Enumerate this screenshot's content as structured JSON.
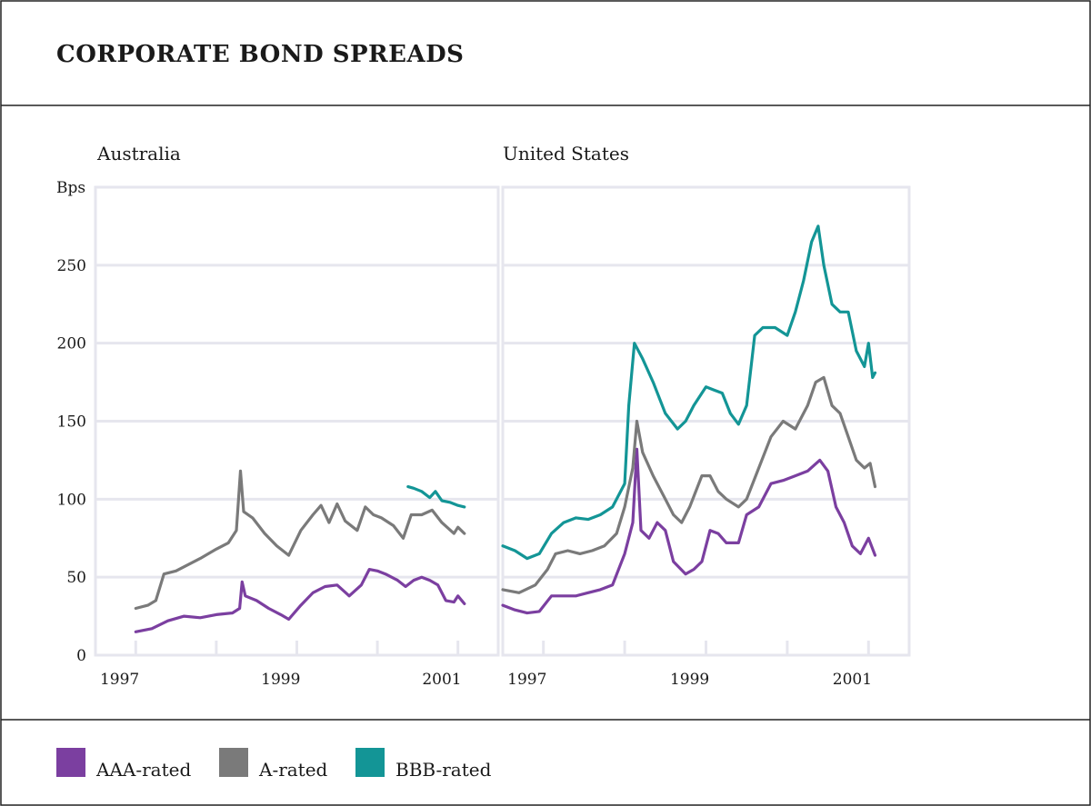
{
  "chart_data": {
    "type": "line",
    "title": "CORPORATE BOND SPREADS",
    "ylabel": "Bps",
    "ylim": [
      0,
      300
    ],
    "yticks": [
      0,
      50,
      100,
      150,
      200,
      250
    ],
    "xticks": [
      "1997",
      "1999",
      "2001"
    ],
    "xlim": [
      1997.0,
      2002.0
    ],
    "legend": [
      {
        "name": "AAA-rated",
        "color": "#7B3FA0"
      },
      {
        "name": "A-rated",
        "color": "#7A7A7A"
      },
      {
        "name": "BBB-rated",
        "color": "#139596"
      }
    ],
    "panels": [
      {
        "title": "Australia",
        "series": [
          {
            "name": "AAA-rated",
            "color": "#7B3FA0",
            "points": [
              [
                1997.5,
                15
              ],
              [
                1997.7,
                17
              ],
              [
                1997.9,
                22
              ],
              [
                1998.1,
                25
              ],
              [
                1998.3,
                24
              ],
              [
                1998.5,
                26
              ],
              [
                1998.7,
                27
              ],
              [
                1998.79,
                30
              ],
              [
                1998.82,
                47
              ],
              [
                1998.86,
                38
              ],
              [
                1999.0,
                35
              ],
              [
                1999.15,
                30
              ],
              [
                1999.3,
                26
              ],
              [
                1999.4,
                23
              ],
              [
                1999.55,
                32
              ],
              [
                1999.7,
                40
              ],
              [
                1999.85,
                44
              ],
              [
                2000.0,
                45
              ],
              [
                2000.15,
                38
              ],
              [
                2000.3,
                45
              ],
              [
                2000.4,
                55
              ],
              [
                2000.5,
                54
              ],
              [
                2000.6,
                52
              ],
              [
                2000.75,
                48
              ],
              [
                2000.85,
                44
              ],
              [
                2000.95,
                48
              ],
              [
                2001.05,
                50
              ],
              [
                2001.15,
                48
              ],
              [
                2001.25,
                45
              ],
              [
                2001.35,
                35
              ],
              [
                2001.45,
                34
              ],
              [
                2001.5,
                38
              ],
              [
                2001.58,
                33
              ]
            ]
          },
          {
            "name": "A-rated",
            "color": "#7A7A7A",
            "points": [
              [
                1997.5,
                30
              ],
              [
                1997.65,
                32
              ],
              [
                1997.75,
                35
              ],
              [
                1997.85,
                52
              ],
              [
                1998.0,
                54
              ],
              [
                1998.15,
                58
              ],
              [
                1998.3,
                62
              ],
              [
                1998.5,
                68
              ],
              [
                1998.65,
                72
              ],
              [
                1998.75,
                80
              ],
              [
                1998.8,
                118
              ],
              [
                1998.84,
                92
              ],
              [
                1998.95,
                88
              ],
              [
                1999.1,
                78
              ],
              [
                1999.25,
                70
              ],
              [
                1999.4,
                64
              ],
              [
                1999.55,
                80
              ],
              [
                1999.7,
                90
              ],
              [
                1999.8,
                96
              ],
              [
                1999.9,
                85
              ],
              [
                2000.0,
                97
              ],
              [
                2000.1,
                86
              ],
              [
                2000.25,
                80
              ],
              [
                2000.35,
                95
              ],
              [
                2000.45,
                90
              ],
              [
                2000.55,
                88
              ],
              [
                2000.7,
                83
              ],
              [
                2000.82,
                75
              ],
              [
                2000.92,
                90
              ],
              [
                2001.05,
                90
              ],
              [
                2001.18,
                93
              ],
              [
                2001.3,
                85
              ],
              [
                2001.45,
                78
              ],
              [
                2001.5,
                82
              ],
              [
                2001.58,
                78
              ]
            ]
          },
          {
            "name": "BBB-rated",
            "color": "#139596",
            "points": [
              [
                2000.88,
                108
              ],
              [
                2000.95,
                107
              ],
              [
                2001.05,
                105
              ],
              [
                2001.15,
                101
              ],
              [
                2001.22,
                105
              ],
              [
                2001.3,
                99
              ],
              [
                2001.4,
                98
              ],
              [
                2001.5,
                96
              ],
              [
                2001.58,
                95
              ]
            ]
          }
        ]
      },
      {
        "title": "United States",
        "series": [
          {
            "name": "AAA-rated",
            "color": "#7B3FA0",
            "points": [
              [
                1997.0,
                32
              ],
              [
                1997.15,
                29
              ],
              [
                1997.3,
                27
              ],
              [
                1997.45,
                28
              ],
              [
                1997.6,
                38
              ],
              [
                1997.75,
                38
              ],
              [
                1997.9,
                38
              ],
              [
                1998.05,
                40
              ],
              [
                1998.2,
                42
              ],
              [
                1998.35,
                45
              ],
              [
                1998.5,
                65
              ],
              [
                1998.6,
                85
              ],
              [
                1998.65,
                132
              ],
              [
                1998.7,
                80
              ],
              [
                1998.8,
                75
              ],
              [
                1998.9,
                85
              ],
              [
                1999.0,
                80
              ],
              [
                1999.1,
                60
              ],
              [
                1999.25,
                52
              ],
              [
                1999.35,
                55
              ],
              [
                1999.45,
                60
              ],
              [
                1999.55,
                80
              ],
              [
                1999.65,
                78
              ],
              [
                1999.75,
                72
              ],
              [
                1999.9,
                72
              ],
              [
                2000.0,
                90
              ],
              [
                2000.15,
                95
              ],
              [
                2000.3,
                110
              ],
              [
                2000.45,
                112
              ],
              [
                2000.6,
                115
              ],
              [
                2000.75,
                118
              ],
              [
                2000.9,
                125
              ],
              [
                2001.0,
                118
              ],
              [
                2001.1,
                95
              ],
              [
                2001.2,
                85
              ],
              [
                2001.3,
                70
              ],
              [
                2001.4,
                65
              ],
              [
                2001.5,
                75
              ],
              [
                2001.58,
                64
              ]
            ]
          },
          {
            "name": "A-rated",
            "color": "#7A7A7A",
            "points": [
              [
                1997.0,
                42
              ],
              [
                1997.2,
                40
              ],
              [
                1997.4,
                45
              ],
              [
                1997.55,
                55
              ],
              [
                1997.65,
                65
              ],
              [
                1997.8,
                67
              ],
              [
                1997.95,
                65
              ],
              [
                1998.1,
                67
              ],
              [
                1998.25,
                70
              ],
              [
                1998.4,
                78
              ],
              [
                1998.5,
                95
              ],
              [
                1998.6,
                120
              ],
              [
                1998.65,
                150
              ],
              [
                1998.72,
                130
              ],
              [
                1998.85,
                115
              ],
              [
                1999.0,
                100
              ],
              [
                1999.1,
                90
              ],
              [
                1999.2,
                85
              ],
              [
                1999.3,
                95
              ],
              [
                1999.45,
                115
              ],
              [
                1999.55,
                115
              ],
              [
                1999.65,
                105
              ],
              [
                1999.75,
                100
              ],
              [
                1999.9,
                95
              ],
              [
                2000.0,
                100
              ],
              [
                2000.15,
                120
              ],
              [
                2000.3,
                140
              ],
              [
                2000.45,
                150
              ],
              [
                2000.6,
                145
              ],
              [
                2000.75,
                160
              ],
              [
                2000.85,
                175
              ],
              [
                2000.95,
                178
              ],
              [
                2001.05,
                160
              ],
              [
                2001.15,
                155
              ],
              [
                2001.25,
                140
              ],
              [
                2001.35,
                125
              ],
              [
                2001.45,
                120
              ],
              [
                2001.52,
                123
              ],
              [
                2001.58,
                108
              ]
            ]
          },
          {
            "name": "BBB-rated",
            "color": "#139596",
            "points": [
              [
                1997.0,
                70
              ],
              [
                1997.15,
                67
              ],
              [
                1997.3,
                62
              ],
              [
                1997.45,
                65
              ],
              [
                1997.6,
                78
              ],
              [
                1997.75,
                85
              ],
              [
                1997.9,
                88
              ],
              [
                1998.05,
                87
              ],
              [
                1998.2,
                90
              ],
              [
                1998.35,
                95
              ],
              [
                1998.5,
                110
              ],
              [
                1998.55,
                160
              ],
              [
                1998.62,
                200
              ],
              [
                1998.72,
                190
              ],
              [
                1998.85,
                175
              ],
              [
                1999.0,
                155
              ],
              [
                1999.15,
                145
              ],
              [
                1999.25,
                150
              ],
              [
                1999.35,
                160
              ],
              [
                1999.5,
                172
              ],
              [
                1999.6,
                170
              ],
              [
                1999.7,
                168
              ],
              [
                1999.8,
                155
              ],
              [
                1999.9,
                148
              ],
              [
                2000.0,
                160
              ],
              [
                2000.1,
                205
              ],
              [
                2000.2,
                210
              ],
              [
                2000.35,
                210
              ],
              [
                2000.5,
                205
              ],
              [
                2000.6,
                220
              ],
              [
                2000.7,
                240
              ],
              [
                2000.8,
                265
              ],
              [
                2000.88,
                275
              ],
              [
                2000.95,
                250
              ],
              [
                2001.05,
                225
              ],
              [
                2001.15,
                220
              ],
              [
                2001.25,
                220
              ],
              [
                2001.35,
                195
              ],
              [
                2001.45,
                185
              ],
              [
                2001.5,
                200
              ],
              [
                2001.55,
                178
              ],
              [
                2001.58,
                181
              ]
            ]
          }
        ]
      }
    ]
  }
}
